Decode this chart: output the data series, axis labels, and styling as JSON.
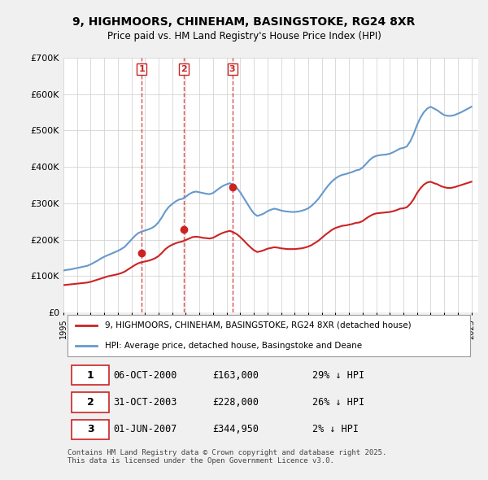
{
  "title": "9, HIGHMOORS, CHINEHAM, BASINGSTOKE, RG24 8XR",
  "subtitle": "Price paid vs. HM Land Registry's House Price Index (HPI)",
  "background_color": "#f0f0f0",
  "plot_bg_color": "#ffffff",
  "ylabel": "",
  "xlabel": "",
  "ylim": [
    0,
    700000
  ],
  "yticks": [
    0,
    100000,
    200000,
    300000,
    400000,
    500000,
    600000,
    700000
  ],
  "ytick_labels": [
    "£0",
    "£100K",
    "£200K",
    "£300K",
    "£400K",
    "£500K",
    "£600K",
    "£700K"
  ],
  "sale_dates": [
    "2000-10-06",
    "2003-10-31",
    "2007-06-01"
  ],
  "sale_prices": [
    163000,
    228000,
    344950
  ],
  "sale_labels": [
    "1",
    "2",
    "3"
  ],
  "hpi_color": "#6699cc",
  "price_color": "#cc2222",
  "sale_marker_color": "#cc2222",
  "vline_color": "#cc2222",
  "legend_label_price": "9, HIGHMOORS, CHINEHAM, BASINGSTOKE, RG24 8XR (detached house)",
  "legend_label_hpi": "HPI: Average price, detached house, Basingstoke and Deane",
  "table_data": [
    [
      "1",
      "06-OCT-2000",
      "£163,000",
      "29% ↓ HPI"
    ],
    [
      "2",
      "31-OCT-2003",
      "£228,000",
      "26% ↓ HPI"
    ],
    [
      "3",
      "01-JUN-2007",
      "£344,950",
      "2% ↓ HPI"
    ]
  ],
  "footer_text": "Contains HM Land Registry data © Crown copyright and database right 2025.\nThis data is licensed under the Open Government Licence v3.0.",
  "hpi_years": [
    1995,
    1995.25,
    1995.5,
    1995.75,
    1996,
    1996.25,
    1996.5,
    1996.75,
    1997,
    1997.25,
    1997.5,
    1997.75,
    1998,
    1998.25,
    1998.5,
    1998.75,
    1999,
    1999.25,
    1999.5,
    1999.75,
    2000,
    2000.25,
    2000.5,
    2000.75,
    2001,
    2001.25,
    2001.5,
    2001.75,
    2002,
    2002.25,
    2002.5,
    2002.75,
    2003,
    2003.25,
    2003.5,
    2003.75,
    2004,
    2004.25,
    2004.5,
    2004.75,
    2005,
    2005.25,
    2005.5,
    2005.75,
    2006,
    2006.25,
    2006.5,
    2006.75,
    2007,
    2007.25,
    2007.5,
    2007.75,
    2008,
    2008.25,
    2008.5,
    2008.75,
    2009,
    2009.25,
    2009.5,
    2009.75,
    2010,
    2010.25,
    2010.5,
    2010.75,
    2011,
    2011.25,
    2011.5,
    2011.75,
    2012,
    2012.25,
    2012.5,
    2012.75,
    2013,
    2013.25,
    2013.5,
    2013.75,
    2014,
    2014.25,
    2014.5,
    2014.75,
    2015,
    2015.25,
    2015.5,
    2015.75,
    2016,
    2016.25,
    2016.5,
    2016.75,
    2017,
    2017.25,
    2017.5,
    2017.75,
    2018,
    2018.25,
    2018.5,
    2018.75,
    2019,
    2019.25,
    2019.5,
    2019.75,
    2020,
    2020.25,
    2020.5,
    2020.75,
    2021,
    2021.25,
    2021.5,
    2021.75,
    2022,
    2022.25,
    2022.5,
    2022.75,
    2023,
    2023.25,
    2023.5,
    2023.75,
    2024,
    2024.25,
    2024.5,
    2024.75,
    2025
  ],
  "hpi_values": [
    115000,
    117000,
    118000,
    120000,
    122000,
    124000,
    126000,
    128000,
    132000,
    137000,
    142000,
    148000,
    153000,
    157000,
    161000,
    165000,
    169000,
    174000,
    180000,
    190000,
    200000,
    210000,
    218000,
    222000,
    225000,
    228000,
    232000,
    238000,
    248000,
    262000,
    278000,
    290000,
    298000,
    305000,
    310000,
    312000,
    318000,
    325000,
    330000,
    332000,
    330000,
    328000,
    326000,
    325000,
    328000,
    335000,
    342000,
    348000,
    352000,
    355000,
    350000,
    342000,
    330000,
    315000,
    300000,
    285000,
    272000,
    265000,
    268000,
    272000,
    278000,
    282000,
    285000,
    283000,
    280000,
    278000,
    277000,
    276000,
    276000,
    277000,
    279000,
    282000,
    286000,
    293000,
    302000,
    312000,
    325000,
    338000,
    350000,
    360000,
    368000,
    374000,
    378000,
    380000,
    383000,
    386000,
    390000,
    392000,
    398000,
    408000,
    418000,
    426000,
    430000,
    432000,
    433000,
    434000,
    436000,
    440000,
    445000,
    450000,
    452000,
    456000,
    470000,
    490000,
    515000,
    535000,
    550000,
    560000,
    565000,
    560000,
    555000,
    548000,
    542000,
    540000,
    540000,
    542000,
    546000,
    550000,
    555000,
    560000,
    565000
  ],
  "price_years": [
    1995,
    1995.25,
    1995.5,
    1995.75,
    1996,
    1996.25,
    1996.5,
    1996.75,
    1997,
    1997.25,
    1997.5,
    1997.75,
    1998,
    1998.25,
    1998.5,
    1998.75,
    1999,
    1999.25,
    1999.5,
    1999.75,
    2000,
    2000.25,
    2000.5,
    2000.75,
    2001,
    2001.25,
    2001.5,
    2001.75,
    2002,
    2002.25,
    2002.5,
    2002.75,
    2003,
    2003.25,
    2003.5,
    2003.75,
    2004,
    2004.25,
    2004.5,
    2004.75,
    2005,
    2005.25,
    2005.5,
    2005.75,
    2006,
    2006.25,
    2006.5,
    2006.75,
    2007,
    2007.25,
    2007.5,
    2007.75,
    2008,
    2008.25,
    2008.5,
    2008.75,
    2009,
    2009.25,
    2009.5,
    2009.75,
    2010,
    2010.25,
    2010.5,
    2010.75,
    2011,
    2011.25,
    2011.5,
    2011.75,
    2012,
    2012.25,
    2012.5,
    2012.75,
    2013,
    2013.25,
    2013.5,
    2013.75,
    2014,
    2014.25,
    2014.5,
    2014.75,
    2015,
    2015.25,
    2015.5,
    2015.75,
    2016,
    2016.25,
    2016.5,
    2016.75,
    2017,
    2017.25,
    2017.5,
    2017.75,
    2018,
    2018.25,
    2018.5,
    2018.75,
    2019,
    2019.25,
    2019.5,
    2019.75,
    2020,
    2020.25,
    2020.5,
    2020.75,
    2021,
    2021.25,
    2021.5,
    2021.75,
    2022,
    2022.25,
    2022.5,
    2022.75,
    2023,
    2023.25,
    2023.5,
    2023.75,
    2024,
    2024.25,
    2024.5,
    2024.75,
    2025
  ],
  "price_index_values": [
    75000,
    76000,
    77000,
    78000,
    79000,
    80000,
    81000,
    82000,
    84000,
    87000,
    90000,
    93000,
    96000,
    99000,
    101000,
    103000,
    105000,
    108000,
    112000,
    118000,
    124000,
    130000,
    135000,
    138000,
    140000,
    142000,
    145000,
    149000,
    155000,
    164000,
    174000,
    181000,
    186000,
    190000,
    193000,
    195000,
    199000,
    203000,
    207000,
    208000,
    207000,
    205000,
    204000,
    203000,
    205000,
    210000,
    215000,
    219000,
    222000,
    224000,
    220000,
    215000,
    207000,
    198000,
    188000,
    179000,
    171000,
    166000,
    168000,
    171000,
    175000,
    177000,
    179000,
    178000,
    176000,
    175000,
    174000,
    174000,
    174000,
    175000,
    176000,
    178000,
    181000,
    185000,
    191000,
    197000,
    205000,
    213000,
    220000,
    227000,
    232000,
    235000,
    238000,
    239000,
    241000,
    243000,
    246000,
    247000,
    251000,
    258000,
    264000,
    269000,
    272000,
    273000,
    274000,
    275000,
    276000,
    278000,
    281000,
    285000,
    286000,
    289000,
    298000,
    311000,
    328000,
    341000,
    351000,
    357000,
    359000,
    355000,
    352000,
    347000,
    344000,
    342000,
    342000,
    344000,
    347000,
    350000,
    353000,
    356000,
    359000
  ],
  "xtick_years": [
    1995,
    1996,
    1997,
    1998,
    1999,
    2000,
    2001,
    2002,
    2003,
    2004,
    2005,
    2006,
    2007,
    2008,
    2009,
    2010,
    2011,
    2012,
    2013,
    2014,
    2015,
    2016,
    2017,
    2018,
    2019,
    2020,
    2021,
    2022,
    2023,
    2024,
    2025
  ]
}
